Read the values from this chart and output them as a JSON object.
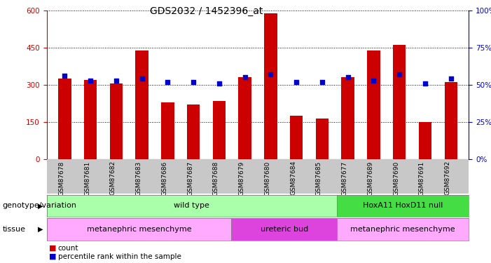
{
  "title": "GDS2032 / 1452396_at",
  "samples": [
    "GSM87678",
    "GSM87681",
    "GSM87682",
    "GSM87683",
    "GSM87686",
    "GSM87687",
    "GSM87688",
    "GSM87679",
    "GSM87680",
    "GSM87684",
    "GSM87685",
    "GSM87677",
    "GSM87689",
    "GSM87690",
    "GSM87691",
    "GSM87692"
  ],
  "counts": [
    325,
    320,
    305,
    440,
    230,
    220,
    235,
    330,
    590,
    175,
    165,
    330,
    440,
    460,
    150,
    310
  ],
  "percentiles": [
    56,
    53,
    53,
    54,
    52,
    52,
    51,
    55,
    57,
    52,
    52,
    55,
    53,
    57,
    51,
    54
  ],
  "left_ylim": [
    0,
    600
  ],
  "left_yticks": [
    0,
    150,
    300,
    450,
    600
  ],
  "right_ylim": [
    0,
    100
  ],
  "right_yticks": [
    0,
    25,
    50,
    75,
    100
  ],
  "bar_color": "#cc0000",
  "dot_color": "#0000cc",
  "genotype_groups": [
    {
      "label": "wild type",
      "start": 0,
      "end": 11,
      "color": "#aaffaa"
    },
    {
      "label": "HoxA11 HoxD11 null",
      "start": 11,
      "end": 16,
      "color": "#44dd44"
    }
  ],
  "tissue_groups": [
    {
      "label": "metanephric mesenchyme",
      "start": 0,
      "end": 7,
      "color": "#ffaaff"
    },
    {
      "label": "ureteric bud",
      "start": 7,
      "end": 11,
      "color": "#dd44dd"
    },
    {
      "label": "metanephric mesenchyme",
      "start": 11,
      "end": 16,
      "color": "#ffaaff"
    }
  ],
  "legend_count_color": "#cc0000",
  "legend_dot_color": "#0000cc",
  "label_genotype": "genotype/variation",
  "label_tissue": "tissue",
  "xtick_bg_color": "#c8c8c8",
  "grid_color": "black",
  "title_fontsize": 10,
  "axis_fontsize": 8,
  "tick_fontsize": 7.5
}
